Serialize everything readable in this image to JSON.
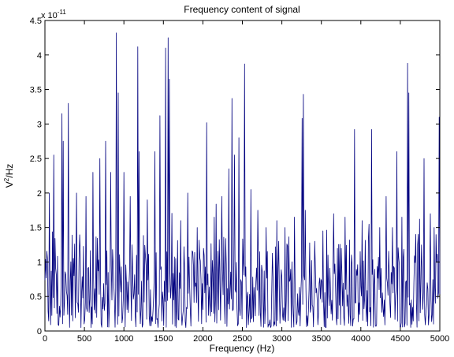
{
  "chart_data": {
    "type": "line",
    "title": "Frequency content of signal",
    "xlabel": "Frequency (Hz)",
    "ylabel_base": "V",
    "ylabel_sup": "2",
    "ylabel_tail": "/Hz",
    "y_exponent_label": "x 10",
    "y_exponent_power": "-11",
    "xlim": [
      0,
      5000
    ],
    "ylim": [
      0,
      4.5
    ],
    "x_ticks": [
      0,
      500,
      1000,
      1500,
      2000,
      2500,
      3000,
      3500,
      4000,
      4500,
      5000
    ],
    "x_tick_labels": [
      "0",
      "500",
      "1000",
      "1500",
      "2000",
      "2500",
      "3000",
      "3500",
      "4000",
      "4500",
      "5000"
    ],
    "y_ticks": [
      0,
      0.5,
      1,
      1.5,
      2,
      2.5,
      3,
      3.5,
      4,
      4.5
    ],
    "y_tick_labels": [
      "0",
      "0.5",
      "1",
      "1.5",
      "2",
      "2.5",
      "3",
      "3.5",
      "4",
      "4.5"
    ],
    "grid": false,
    "line_color": "#00007f",
    "peaks": [
      {
        "x": 60,
        "y": 2.0
      },
      {
        "x": 110,
        "y": 2.55
      },
      {
        "x": 215,
        "y": 3.15
      },
      {
        "x": 235,
        "y": 2.75
      },
      {
        "x": 300,
        "y": 3.3
      },
      {
        "x": 400,
        "y": 2.0
      },
      {
        "x": 520,
        "y": 1.95
      },
      {
        "x": 610,
        "y": 2.3
      },
      {
        "x": 700,
        "y": 2.5
      },
      {
        "x": 765,
        "y": 2.75
      },
      {
        "x": 830,
        "y": 2.3
      },
      {
        "x": 905,
        "y": 4.32
      },
      {
        "x": 925,
        "y": 3.45
      },
      {
        "x": 1000,
        "y": 2.3
      },
      {
        "x": 1080,
        "y": 1.95
      },
      {
        "x": 1175,
        "y": 4.12
      },
      {
        "x": 1195,
        "y": 2.6
      },
      {
        "x": 1300,
        "y": 1.9
      },
      {
        "x": 1390,
        "y": 2.6
      },
      {
        "x": 1455,
        "y": 3.12
      },
      {
        "x": 1530,
        "y": 4.1
      },
      {
        "x": 1560,
        "y": 4.25
      },
      {
        "x": 1580,
        "y": 3.65
      },
      {
        "x": 1720,
        "y": 1.6
      },
      {
        "x": 1810,
        "y": 2.0
      },
      {
        "x": 1930,
        "y": 1.5
      },
      {
        "x": 2050,
        "y": 3.02
      },
      {
        "x": 2145,
        "y": 1.65
      },
      {
        "x": 2240,
        "y": 1.95
      },
      {
        "x": 2330,
        "y": 2.35
      },
      {
        "x": 2370,
        "y": 3.37
      },
      {
        "x": 2400,
        "y": 2.55
      },
      {
        "x": 2460,
        "y": 2.8
      },
      {
        "x": 2530,
        "y": 3.87
      },
      {
        "x": 2610,
        "y": 2.05
      },
      {
        "x": 2700,
        "y": 1.75
      },
      {
        "x": 2800,
        "y": 1.5
      },
      {
        "x": 2940,
        "y": 1.6
      },
      {
        "x": 3040,
        "y": 1.5
      },
      {
        "x": 3160,
        "y": 1.65
      },
      {
        "x": 3255,
        "y": 3.08
      },
      {
        "x": 3275,
        "y": 3.43
      },
      {
        "x": 3300,
        "y": 1.75
      },
      {
        "x": 3420,
        "y": 1.3
      },
      {
        "x": 3520,
        "y": 1.45
      },
      {
        "x": 3660,
        "y": 1.7
      },
      {
        "x": 3800,
        "y": 1.65
      },
      {
        "x": 3920,
        "y": 2.92
      },
      {
        "x": 4020,
        "y": 1.6
      },
      {
        "x": 4140,
        "y": 2.92
      },
      {
        "x": 4240,
        "y": 1.5
      },
      {
        "x": 4320,
        "y": 1.95
      },
      {
        "x": 4400,
        "y": 1.5
      },
      {
        "x": 4460,
        "y": 2.6
      },
      {
        "x": 4520,
        "y": 1.65
      },
      {
        "x": 4590,
        "y": 3.88
      },
      {
        "x": 4610,
        "y": 3.45
      },
      {
        "x": 4700,
        "y": 1.4
      },
      {
        "x": 4800,
        "y": 2.5
      },
      {
        "x": 4880,
        "y": 1.7
      },
      {
        "x": 4930,
        "y": 1.5
      },
      {
        "x": 4990,
        "y": 3.1
      }
    ]
  }
}
